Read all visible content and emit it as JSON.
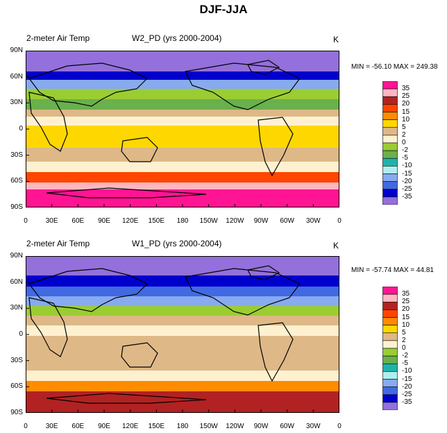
{
  "figure_title": "DJF-JJA",
  "panels": [
    {
      "left_label": "2-meter Air Temp",
      "center_label": "W2_PD (yrs 2000-2004)",
      "units": "K",
      "minmax": "MIN = -56.10 MAX = 249.38"
    },
    {
      "left_label": "2-meter Air Temp",
      "center_label": "W1_PD (yrs 2000-2004)",
      "units": "K",
      "minmax": "MIN = -57.74 MAX =  44.81"
    }
  ],
  "lat_ticks": [
    "90N",
    "60N",
    "30N",
    "0",
    "30S",
    "60S",
    "90S"
  ],
  "lon_ticks": [
    "0",
    "30E",
    "60E",
    "90E",
    "120E",
    "150E",
    "180",
    "150W",
    "120W",
    "90W",
    "60W",
    "30W",
    "0"
  ],
  "colorbar": {
    "labels": [
      "35",
      "25",
      "20",
      "15",
      "10",
      "5",
      "2",
      "0",
      "-2",
      "-5",
      "-10",
      "-15",
      "-20",
      "-25",
      "-35"
    ],
    "colors": [
      "#ff1493",
      "#ffb6c1",
      "#b22222",
      "#ff4500",
      "#ff8c00",
      "#ffd700",
      "#deb887",
      "#fff1d0",
      "#9acd32",
      "#6ab04c",
      "#20b2aa",
      "#afeeee",
      "#87aaf0",
      "#4169e1",
      "#0000cd",
      "#9370db"
    ]
  }
}
